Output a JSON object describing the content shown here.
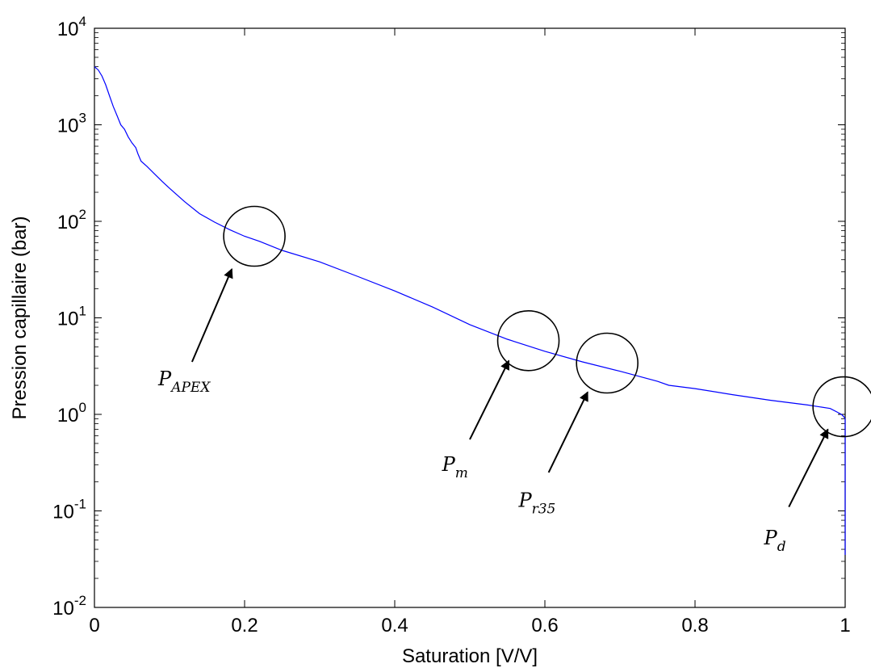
{
  "chart_data": {
    "type": "line",
    "xlabel": "Saturation [V/V]",
    "ylabel": "Pression capillaire (bar)",
    "xlim": [
      0,
      1
    ],
    "ylim": [
      0.01,
      10000
    ],
    "yscale": "log",
    "grid": false,
    "x_ticks": [
      "0",
      "0.2",
      "0.4",
      "0.6",
      "0.8",
      "1"
    ],
    "y_ticks": [
      {
        "base": "10",
        "exp": "-2"
      },
      {
        "base": "10",
        "exp": "-1"
      },
      {
        "base": "10",
        "exp": "0"
      },
      {
        "base": "10",
        "exp": "1"
      },
      {
        "base": "10",
        "exp": "2"
      },
      {
        "base": "10",
        "exp": "3"
      },
      {
        "base": "10",
        "exp": "4"
      }
    ],
    "series": [
      {
        "color": "#0000ff",
        "x": [
          0.0,
          0.005,
          0.01,
          0.015,
          0.02,
          0.025,
          0.03,
          0.035,
          0.04,
          0.045,
          0.05,
          0.055,
          0.058,
          0.062,
          0.07,
          0.08,
          0.09,
          0.1,
          0.12,
          0.14,
          0.16,
          0.18,
          0.2,
          0.22,
          0.25,
          0.3,
          0.35,
          0.4,
          0.45,
          0.5,
          0.55,
          0.6,
          0.65,
          0.7,
          0.75,
          0.765,
          0.8,
          0.85,
          0.9,
          0.95,
          0.98,
          0.99,
          0.995,
          0.998,
          1.0,
          1.0
        ],
        "y": [
          4000,
          3700,
          3200,
          2600,
          2000,
          1550,
          1250,
          1000,
          900,
          750,
          650,
          580,
          500,
          420,
          370,
          310,
          260,
          220,
          160,
          120,
          98,
          82,
          70,
          62,
          50,
          38,
          27,
          19,
          13,
          8.5,
          6.0,
          4.5,
          3.5,
          2.8,
          2.2,
          2.0,
          1.85,
          1.6,
          1.4,
          1.25,
          1.15,
          1.05,
          1.0,
          0.95,
          0.9,
          0.035
        ]
      }
    ],
    "annotations": [
      {
        "main": "P",
        "sub": "APEX",
        "circle_x": 0.213,
        "circle_y": 70,
        "arrow_from_x": 0.13,
        "arrow_from_y": 3.5,
        "arrow_to_x": 0.183,
        "arrow_to_y": 32,
        "label_x": 0.085,
        "label_y": 2.0
      },
      {
        "main": "P",
        "sub": "m",
        "circle_x": 0.578,
        "circle_y": 5.8,
        "arrow_from_x": 0.5,
        "arrow_from_y": 0.55,
        "arrow_to_x": 0.552,
        "arrow_to_y": 3.6,
        "label_x": 0.463,
        "label_y": 0.26
      },
      {
        "main": "P",
        "sub": "r35",
        "circle_x": 0.683,
        "circle_y": 3.4,
        "arrow_from_x": 0.605,
        "arrow_from_y": 0.25,
        "arrow_to_x": 0.657,
        "arrow_to_y": 1.7,
        "label_x": 0.565,
        "label_y": 0.11
      },
      {
        "main": "P",
        "sub": "d",
        "circle_x": 0.998,
        "circle_y": 1.2,
        "arrow_from_x": 0.925,
        "arrow_from_y": 0.11,
        "arrow_to_x": 0.977,
        "arrow_to_y": 0.7,
        "label_x": 0.892,
        "label_y": 0.045
      }
    ]
  }
}
